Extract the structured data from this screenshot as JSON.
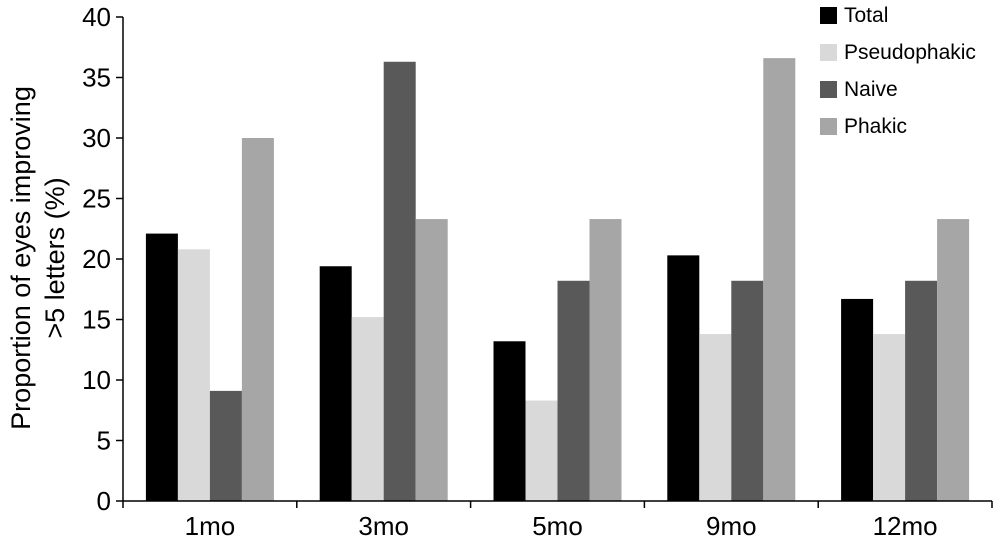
{
  "chart_data": {
    "type": "bar",
    "ylabel_lines": [
      "Proportion of eyes improving",
      ">5 letters (%)"
    ],
    "categories": [
      "1mo",
      "3mo",
      "5mo",
      "9mo",
      "12mo"
    ],
    "ylim": [
      0,
      40
    ],
    "yticks": [
      0,
      5,
      10,
      15,
      20,
      25,
      30,
      35,
      40
    ],
    "grid": false,
    "legend_position": "top-right",
    "series": [
      {
        "name": "Total",
        "color": "#000000",
        "values": [
          22.1,
          19.4,
          13.2,
          20.3,
          16.7
        ]
      },
      {
        "name": "Pseudophakic",
        "color": "#d9d9d9",
        "values": [
          20.8,
          15.2,
          8.3,
          13.8,
          13.8
        ]
      },
      {
        "name": "Naive",
        "color": "#595959",
        "values": [
          9.1,
          36.3,
          18.2,
          18.2,
          18.2
        ]
      },
      {
        "name": "Phakic",
        "color": "#a6a6a6",
        "values": [
          30.0,
          23.3,
          23.3,
          36.6,
          23.3
        ]
      }
    ]
  }
}
